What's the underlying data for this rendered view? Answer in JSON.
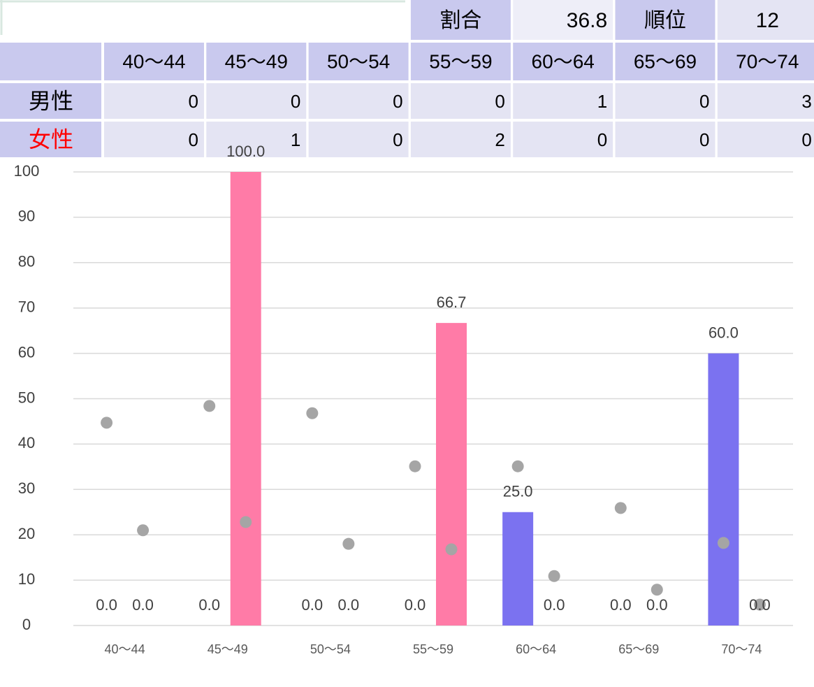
{
  "table": {
    "summary": [
      {
        "label": "割合",
        "value": 36.8
      },
      {
        "label": "順位",
        "value": 12
      }
    ],
    "headers": [
      "40～44",
      "45～49",
      "50～54",
      "55～59",
      "60～64",
      "65～69",
      "70～74"
    ],
    "rows": [
      {
        "label": "男性",
        "color": "#000000",
        "values": [
          0,
          0,
          0,
          0,
          1,
          0,
          3
        ]
      },
      {
        "label": "女性",
        "color": "#ff0000",
        "values": [
          0,
          1,
          0,
          2,
          0,
          0,
          0
        ]
      }
    ]
  },
  "chart_data": {
    "type": "bar",
    "categories": [
      "40～44",
      "45～49",
      "50～54",
      "55～59",
      "60～64",
      "65～69",
      "70～74"
    ],
    "ylim": [
      0,
      100
    ],
    "yticks": [
      0,
      10,
      20,
      30,
      40,
      50,
      60,
      70,
      80,
      90,
      100
    ],
    "grid": true,
    "series": [
      {
        "type": "bar",
        "color": "#7b72f0",
        "values": [
          0,
          0,
          0,
          0,
          25,
          0,
          60
        ],
        "value_labels": [
          "0.0",
          "0.0",
          "0.0",
          "0.0",
          "25.0",
          "0.0",
          "60.0"
        ]
      },
      {
        "type": "bar",
        "color": "#ff7ba7",
        "values": [
          0,
          100,
          0,
          66.7,
          0,
          0,
          0
        ],
        "value_labels": [
          "0.0",
          "100.0",
          "0.0",
          "66.7",
          "0.0",
          "0.0",
          "0.0"
        ]
      },
      {
        "type": "scatter",
        "color": "#a5a5a5",
        "values": [
          44.7,
          48.4,
          46.8,
          35.1,
          35.1,
          25.9,
          18.2
        ]
      },
      {
        "type": "scatter",
        "color": "#a5a5a5",
        "values": [
          21.0,
          22.8,
          18.0,
          16.8,
          10.9,
          7.9,
          4.6
        ]
      }
    ]
  }
}
